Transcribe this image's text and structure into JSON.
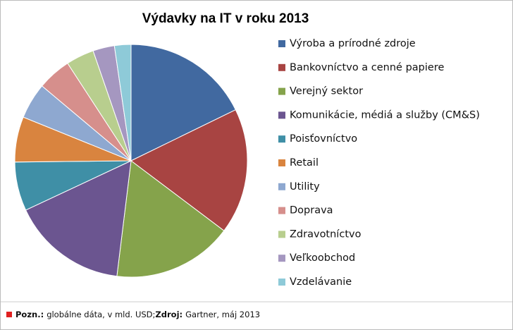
{
  "chart_data": {
    "type": "pie",
    "title": "Výdavky na IT v roku 2013",
    "categories": [
      "Výroba a prírodné zdroje",
      "Bankovníctvo a cenné papiere",
      "Verejný sektor",
      "Komunikácie, médiá a služby (CM&S)",
      "Poisťovníctvo",
      "Retail",
      "Utility",
      "Doprava",
      "Zdravotníctvo",
      "Veľkoobchod",
      "Vzdelávanie"
    ],
    "values": [
      17.8,
      17.5,
      16.7,
      16.1,
      6.8,
      6.3,
      5.0,
      4.7,
      3.9,
      3.0,
      2.3
    ],
    "colors": [
      "#4169a0",
      "#a84442",
      "#85a34b",
      "#6b5590",
      "#3f8fa6",
      "#d9843f",
      "#8ea8d0",
      "#d68f8c",
      "#b8ce8e",
      "#a597c0",
      "#8ecad8"
    ],
    "legend": "right"
  },
  "footer": {
    "note_label": "Pozn.:",
    "note_text": "globálne dáta, v mld. USD;",
    "source_label": "Zdroj:",
    "source_text": "Gartner, máj 2013"
  }
}
